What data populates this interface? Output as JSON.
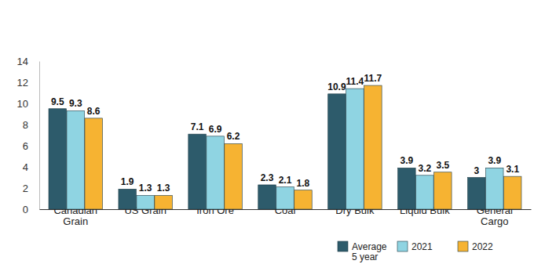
{
  "chart_data": {
    "type": "bar",
    "categories": [
      "Canadian Grain",
      "US Grain",
      "Iron Ore",
      "Coal",
      "Dry Bulk",
      "Liquid Bulk",
      "General Cargo"
    ],
    "series": [
      {
        "name": "Average 5 year",
        "color": "#2d5b6b",
        "values": [
          9.5,
          1.9,
          7.1,
          2.3,
          10.9,
          3.9,
          3.0
        ]
      },
      {
        "name": "2021",
        "color": "#8fd4e2",
        "values": [
          9.3,
          1.3,
          6.9,
          2.1,
          11.4,
          3.2,
          3.9
        ]
      },
      {
        "name": "2022",
        "color": "#f6b332",
        "values": [
          8.6,
          1.3,
          6.2,
          1.8,
          11.7,
          3.5,
          3.1
        ]
      }
    ],
    "ylim": [
      0,
      14
    ],
    "yticks": [
      0,
      2,
      4,
      6,
      8,
      10,
      12,
      14
    ],
    "grid": false,
    "data_labels": true,
    "legend": "bottom-right"
  }
}
